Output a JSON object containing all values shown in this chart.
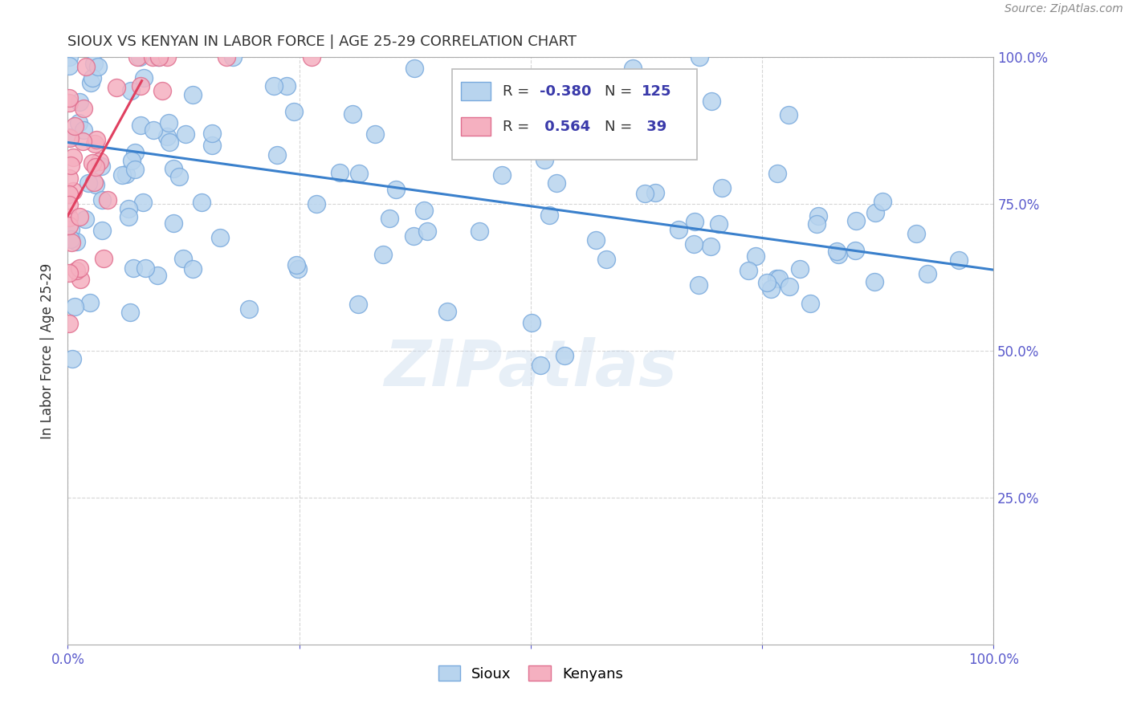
{
  "title": "SIOUX VS KENYAN IN LABOR FORCE | AGE 25-29 CORRELATION CHART",
  "source": "Source: ZipAtlas.com",
  "ylabel": "In Labor Force | Age 25-29",
  "xlim": [
    0,
    1
  ],
  "ylim": [
    0,
    1
  ],
  "xticks": [
    0,
    0.25,
    0.5,
    0.75,
    1.0
  ],
  "yticks": [
    0.25,
    0.5,
    0.75,
    1.0
  ],
  "xticklabels_left": [
    "0.0%",
    "",
    "",
    "",
    ""
  ],
  "xticklabels_right": [
    "",
    "",
    "",
    "",
    "100.0%"
  ],
  "yticklabels": [
    "25.0%",
    "50.0%",
    "75.0%",
    "100.0%"
  ],
  "sioux_color": "#b8d4ee",
  "kenyan_color": "#f5b0c0",
  "sioux_edge_color": "#7aaadd",
  "kenyan_edge_color": "#e07090",
  "trend_sioux_color": "#3a80cc",
  "trend_kenyan_color": "#e04060",
  "R_sioux": -0.38,
  "N_sioux": 125,
  "R_kenyan": 0.564,
  "N_kenyan": 39,
  "background_color": "#ffffff",
  "grid_color": "#cccccc",
  "watermark_text": "ZIPatlas",
  "legend_R_color": "#3a3aaa",
  "legend_N_color": "#3a3aaa",
  "tick_color": "#5a5acc",
  "sioux_trend_start_y": 0.855,
  "sioux_trend_end_y": 0.638,
  "kenyan_trend_start_x": 0.0,
  "kenyan_trend_start_y": 0.73,
  "kenyan_trend_end_x": 0.08,
  "kenyan_trend_end_y": 0.96
}
